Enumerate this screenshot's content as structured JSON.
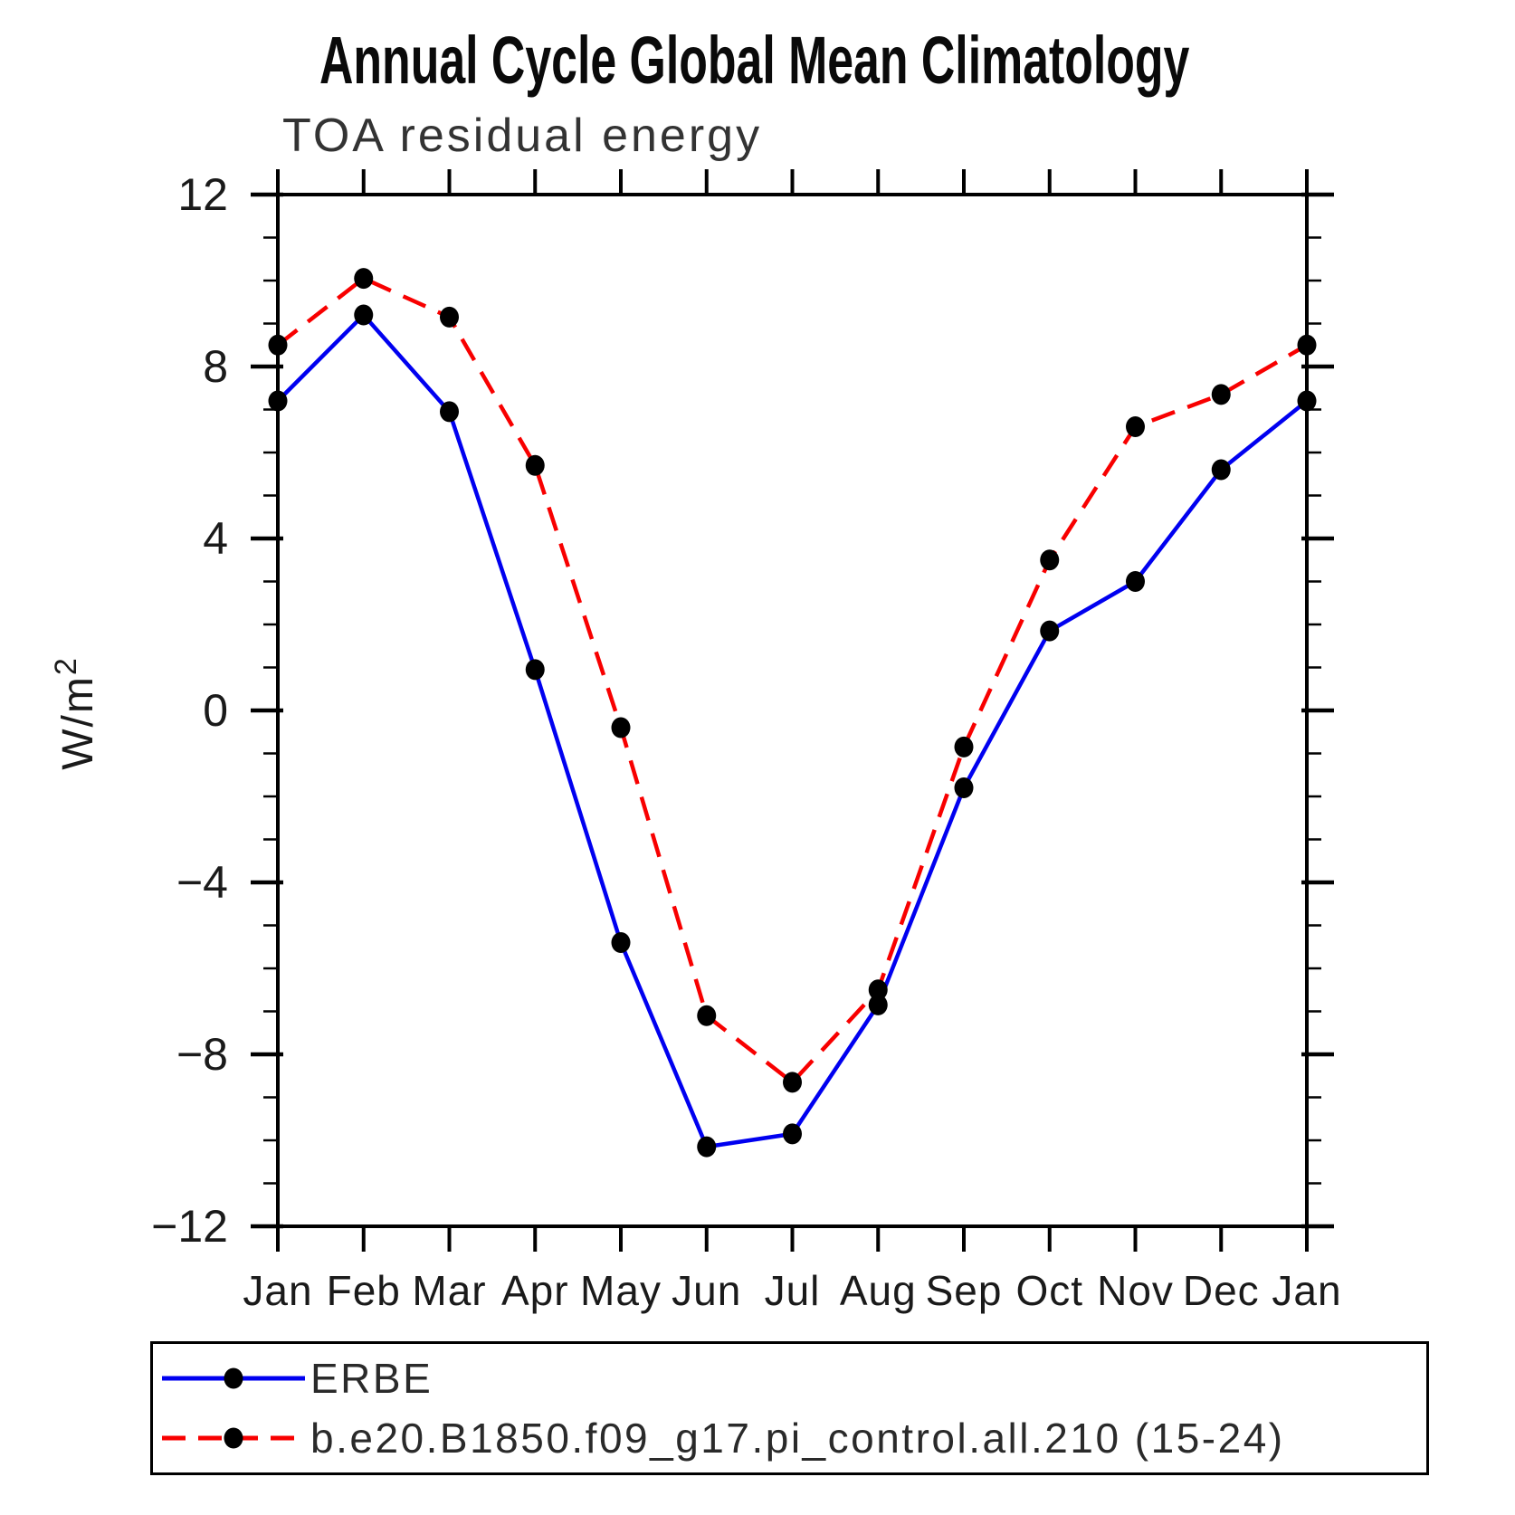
{
  "title": "Annual Cycle Global Mean Climatology",
  "subtitle": "TOA residual energy",
  "colors": {
    "erbe_line": "#0000f0",
    "model_line": "#f80000",
    "marker": "#000000",
    "axis": "#000000",
    "tick_label": "#1a1a1a"
  },
  "chart_data": {
    "type": "line",
    "title": "Annual Cycle Global Mean Climatology",
    "subtitle": "TOA residual energy",
    "x_categories": [
      "Jan",
      "Feb",
      "Mar",
      "Apr",
      "May",
      "Jun",
      "Jul",
      "Aug",
      "Sep",
      "Oct",
      "Nov",
      "Dec",
      "Jan"
    ],
    "ylabel": {
      "base": "W/m",
      "superscript": "2"
    },
    "ylim": [
      -12,
      12
    ],
    "ytick_major": [
      -12,
      -8,
      -4,
      0,
      4,
      8,
      12
    ],
    "ytick_minor_step": 1,
    "grid": "off",
    "legend_position": "bottom",
    "series": [
      {
        "name": "ERBE",
        "style": "solid",
        "color": "#0000f0",
        "values": [
          7.2,
          9.2,
          6.95,
          0.95,
          -5.4,
          -10.15,
          -9.85,
          -6.85,
          -1.8,
          1.85,
          3.0,
          5.6,
          7.2
        ]
      },
      {
        "name": "b.e20.B1850.f09_g17.pi_control.all.210 (15-24)",
        "style": "dashed",
        "color": "#f80000",
        "values": [
          8.5,
          10.05,
          9.15,
          5.7,
          -0.4,
          -7.1,
          -8.65,
          -6.5,
          -0.85,
          3.5,
          6.6,
          7.35,
          8.5
        ]
      }
    ]
  }
}
